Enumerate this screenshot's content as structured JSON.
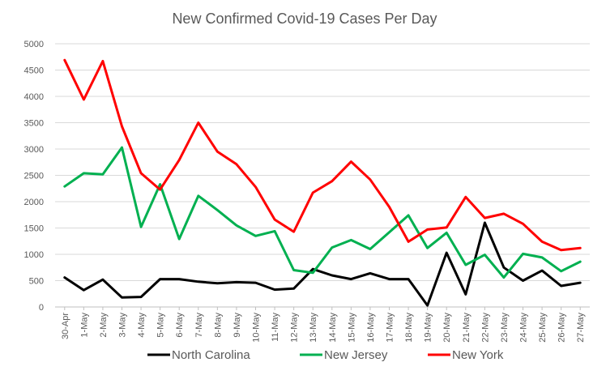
{
  "chart_data": {
    "type": "line",
    "title": "New Confirmed  Covid-19 Cases Per Day",
    "xlabel": "",
    "ylabel": "",
    "ylim": [
      0,
      5000
    ],
    "y_ticks": [
      0,
      500,
      1000,
      1500,
      2000,
      2500,
      3000,
      3500,
      4000,
      4500,
      5000
    ],
    "grid": true,
    "legend_position": "bottom",
    "categories": [
      "30-Apr",
      "1-May",
      "2-May",
      "3-May",
      "4-May",
      "5-May",
      "6-May",
      "7-May",
      "8-May",
      "9-May",
      "10-May",
      "11-May",
      "12-May",
      "13-May",
      "14-May",
      "15-May",
      "16-May",
      "17-May",
      "18-May",
      "19-May",
      "20-May",
      "21-May",
      "22-May",
      "23-May",
      "24-May",
      "25-May",
      "26-May",
      "27-May"
    ],
    "series": [
      {
        "name": "North Carolina",
        "color": "#000000",
        "values": [
          560,
          320,
          520,
          180,
          190,
          530,
          530,
          480,
          450,
          470,
          460,
          330,
          350,
          720,
          600,
          530,
          640,
          530,
          530,
          30,
          1030,
          240,
          1600,
          750,
          500,
          690,
          400,
          460
        ]
      },
      {
        "name": "New Jersey",
        "color": "#00B050",
        "values": [
          2290,
          2540,
          2520,
          3030,
          1520,
          2330,
          1290,
          2110,
          1840,
          1550,
          1350,
          1440,
          700,
          650,
          1130,
          1270,
          1100,
          1420,
          1740,
          1120,
          1410,
          800,
          990,
          560,
          1010,
          940,
          680,
          860
        ]
      },
      {
        "name": "New York",
        "color": "#FF0000",
        "values": [
          4690,
          3940,
          4670,
          3430,
          2540,
          2230,
          2790,
          3500,
          2950,
          2710,
          2280,
          1660,
          1430,
          2170,
          2390,
          2760,
          2420,
          1900,
          1240,
          1470,
          1510,
          2090,
          1690,
          1770,
          1580,
          1240,
          1080,
          1120
        ]
      }
    ]
  }
}
